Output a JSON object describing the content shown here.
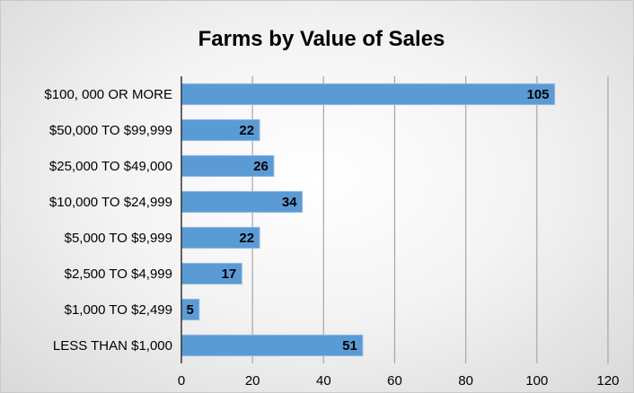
{
  "chart_data": {
    "type": "bar",
    "orientation": "horizontal",
    "title": "Farms by Value of Sales",
    "categories": [
      "$100, 000 OR MORE",
      "$50,000 TO $99,999",
      "$25,000 TO $49,000",
      "$10,000 TO $24,999",
      "$5,000 TO $9,999",
      "$2,500 TO $4,999",
      "$1,000 TO $2,499",
      "LESS THAN $1,000"
    ],
    "values": [
      105,
      22,
      26,
      34,
      22,
      17,
      5,
      51
    ],
    "xlim": [
      0,
      120
    ],
    "xticks": [
      0,
      20,
      40,
      60,
      80,
      100,
      120
    ],
    "grid": true,
    "data_labels": true,
    "bar_color": "#5b9bd5"
  }
}
